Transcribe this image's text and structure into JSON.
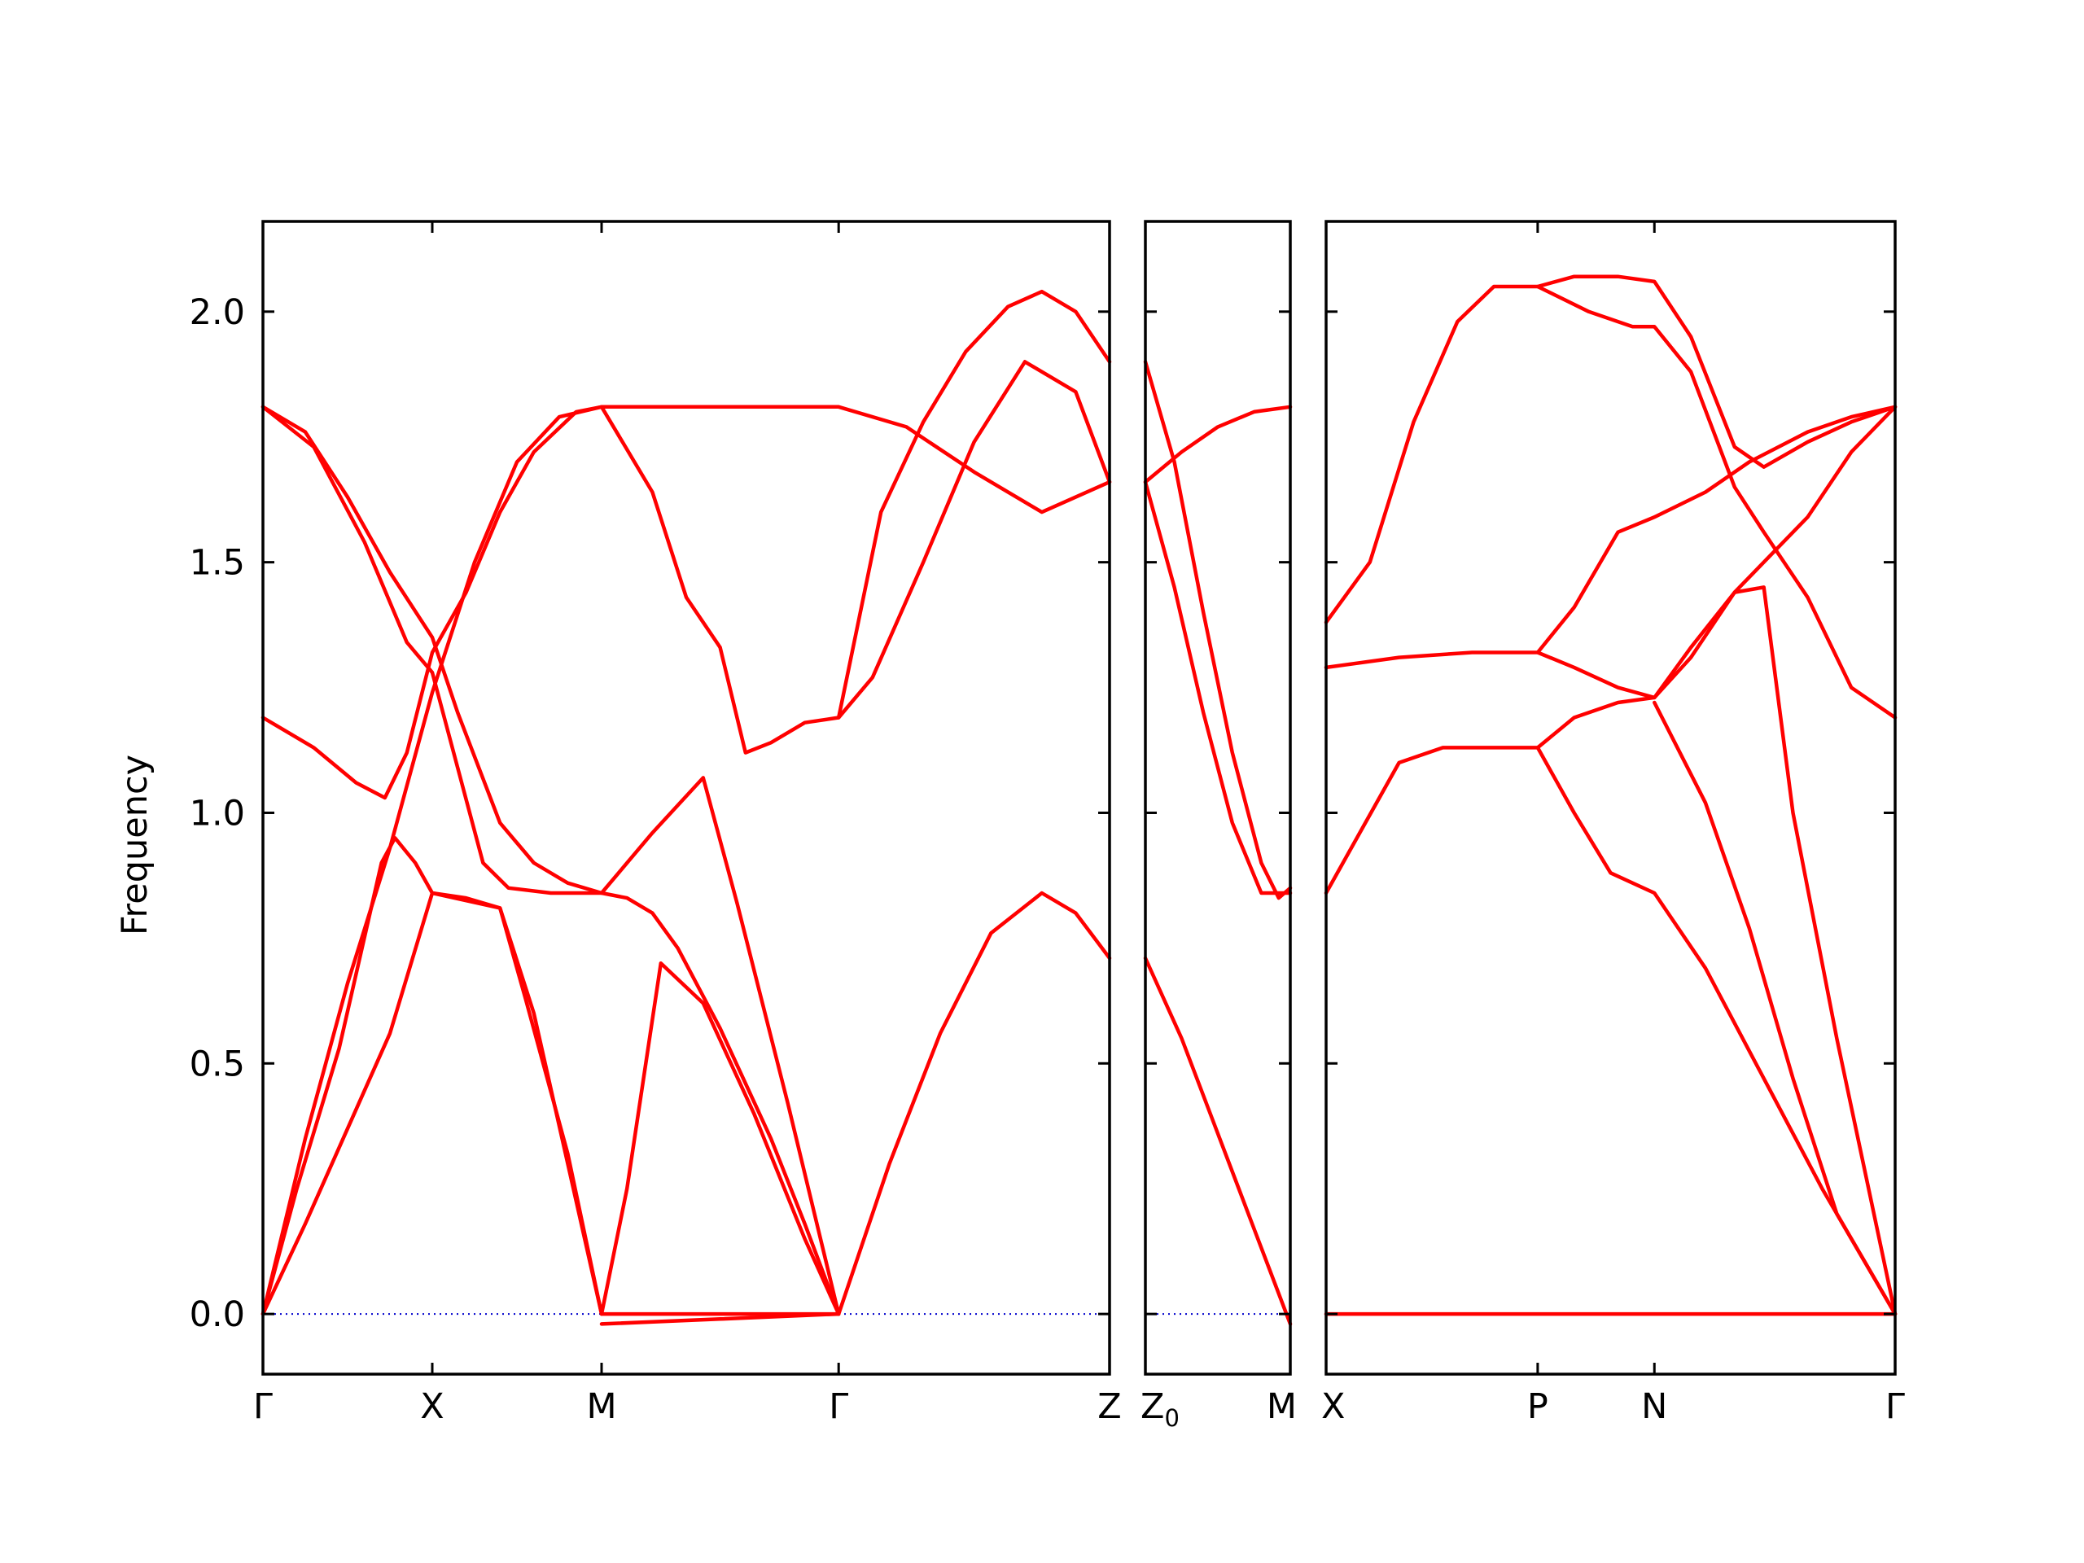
{
  "chart_data": {
    "type": "line",
    "title": "",
    "ylabel": "Frequency",
    "ylim": [
      -0.12,
      2.18
    ],
    "y_ticks": [
      0.0,
      0.5,
      1.0,
      1.5,
      2.0
    ],
    "y_tick_labels": [
      "0.0",
      "0.5",
      "1.0",
      "1.5",
      "2.0"
    ],
    "colors": {
      "band": "#ff0000",
      "zero_line": "#0000cc",
      "axes": "#000000"
    },
    "grid": false,
    "legend": "none",
    "panels": [
      {
        "xlim": [
          0,
          5
        ],
        "x_ticks": [
          0,
          1,
          2,
          3.4,
          5
        ],
        "x_tick_labels": [
          "Γ",
          "X",
          "M",
          "Γ",
          "Z"
        ],
        "series": [
          {
            "values": [
              [
                0,
                0
              ],
              [
                0.25,
                0.35
              ],
              [
                0.5,
                0.66
              ],
              [
                0.75,
                0.93
              ],
              [
                1,
                1.24
              ],
              [
                1.25,
                1.5
              ],
              [
                1.5,
                1.7
              ],
              [
                1.75,
                1.79
              ],
              [
                2,
                1.81
              ],
              [
                2.3,
                1.81
              ],
              [
                2.7,
                1.81
              ],
              [
                3,
                1.81
              ],
              [
                3.4,
                1.81
              ],
              [
                3.8,
                1.77
              ],
              [
                4.2,
                1.68
              ],
              [
                4.6,
                1.6
              ],
              [
                5,
                1.66
              ]
            ]
          },
          {
            "values": [
              [
                0,
                1.81
              ],
              [
                0.3,
                1.73
              ],
              [
                0.6,
                1.54
              ],
              [
                0.85,
                1.34
              ],
              [
                1,
                1.28
              ],
              [
                1.15,
                1.09
              ],
              [
                1.3,
                0.9
              ],
              [
                1.45,
                0.85
              ],
              [
                1.7,
                0.84
              ],
              [
                2,
                0.84
              ],
              [
                2.15,
                0.83
              ],
              [
                2.3,
                0.8
              ],
              [
                2.45,
                0.73
              ],
              [
                2.7,
                0.57
              ],
              [
                3,
                0.35
              ],
              [
                3.2,
                0.18
              ],
              [
                3.4,
                0
              ]
            ]
          },
          {
            "values": [
              [
                0,
                1.81
              ],
              [
                0.25,
                1.76
              ],
              [
                0.5,
                1.63
              ],
              [
                0.75,
                1.48
              ],
              [
                1,
                1.35
              ],
              [
                1.15,
                1.2
              ],
              [
                1.4,
                0.98
              ],
              [
                1.6,
                0.9
              ],
              [
                1.8,
                0.86
              ],
              [
                2,
                0.84
              ],
              [
                2.3,
                0.96
              ],
              [
                2.6,
                1.07
              ],
              [
                2.8,
                0.82
              ],
              [
                3.1,
                0.42
              ],
              [
                3.4,
                0
              ]
            ]
          },
          {
            "values": [
              [
                0,
                1.19
              ],
              [
                0.3,
                1.13
              ],
              [
                0.55,
                1.06
              ],
              [
                0.72,
                1.03
              ],
              [
                0.85,
                1.12
              ],
              [
                1,
                1.32
              ],
              [
                1.2,
                1.44
              ],
              [
                1.4,
                1.6
              ],
              [
                1.6,
                1.72
              ],
              [
                1.85,
                1.8
              ],
              [
                2,
                1.81
              ],
              [
                2.3,
                1.64
              ],
              [
                2.5,
                1.43
              ],
              [
                2.7,
                1.33
              ],
              [
                2.85,
                1.12
              ],
              [
                3,
                1.14
              ],
              [
                3.2,
                1.18
              ],
              [
                3.4,
                1.19
              ],
              [
                3.6,
                1.27
              ],
              [
                3.9,
                1.5
              ],
              [
                4.2,
                1.74
              ],
              [
                4.5,
                1.9
              ],
              [
                4.8,
                1.84
              ],
              [
                5,
                1.66
              ]
            ]
          },
          {
            "values": [
              [
                0,
                0
              ],
              [
                0.2,
                0.25
              ],
              [
                0.45,
                0.53
              ],
              [
                0.7,
                0.9
              ],
              [
                0.78,
                0.95
              ],
              [
                0.9,
                0.9
              ],
              [
                1,
                0.84
              ],
              [
                1.2,
                0.83
              ],
              [
                1.4,
                0.81
              ],
              [
                1.55,
                0.63
              ],
              [
                1.8,
                0.32
              ],
              [
                2,
                0
              ],
              [
                2.15,
                0.25
              ],
              [
                2.35,
                0.7
              ],
              [
                2.6,
                0.62
              ],
              [
                2.9,
                0.4
              ],
              [
                3.2,
                0.15
              ],
              [
                3.4,
                0
              ]
            ]
          },
          {
            "values": [
              [
                0,
                0
              ],
              [
                0.25,
                0.18
              ],
              [
                0.5,
                0.37
              ],
              [
                0.75,
                0.56
              ],
              [
                1,
                0.84
              ],
              [
                1.4,
                0.81
              ],
              [
                1.6,
                0.6
              ],
              [
                1.8,
                0.3
              ],
              [
                2,
                0
              ],
              [
                2.7,
                0
              ],
              [
                3.4,
                0
              ]
            ]
          },
          {
            "values": [
              [
                2,
                -0.02
              ],
              [
                2.7,
                -0.01
              ],
              [
                3.4,
                0
              ],
              [
                3.7,
                0.3
              ],
              [
                4,
                0.56
              ],
              [
                4.3,
                0.76
              ],
              [
                4.6,
                0.84
              ],
              [
                4.8,
                0.8
              ],
              [
                5,
                0.71
              ]
            ]
          },
          {
            "values": [
              [
                3.4,
                1.19
              ],
              [
                3.65,
                1.6
              ],
              [
                3.9,
                1.78
              ],
              [
                4.15,
                1.92
              ],
              [
                4.4,
                2.01
              ],
              [
                4.6,
                2.04
              ],
              [
                4.8,
                2.0
              ],
              [
                5,
                1.9
              ]
            ]
          }
        ]
      },
      {
        "xlim": [
          0,
          1
        ],
        "x_ticks": [
          0,
          1
        ],
        "x_tick_labels": [
          "Z",
          "M"
        ],
        "x_tick_sub": [
          "0",
          ""
        ],
        "series": [
          {
            "values": [
              [
                0,
                1.66
              ],
              [
                0.25,
                1.72
              ],
              [
                0.5,
                1.77
              ],
              [
                0.75,
                1.8
              ],
              [
                1,
                1.81
              ]
            ]
          },
          {
            "values": [
              [
                0,
                1.9
              ],
              [
                0.2,
                1.7
              ],
              [
                0.4,
                1.4
              ],
              [
                0.6,
                1.12
              ],
              [
                0.8,
                0.9
              ],
              [
                0.92,
                0.83
              ],
              [
                1,
                0.85
              ]
            ]
          },
          {
            "values": [
              [
                0,
                1.66
              ],
              [
                0.2,
                1.45
              ],
              [
                0.4,
                1.2
              ],
              [
                0.6,
                0.98
              ],
              [
                0.8,
                0.84
              ],
              [
                1,
                0.84
              ]
            ]
          },
          {
            "values": [
              [
                0,
                0.71
              ],
              [
                0.25,
                0.55
              ],
              [
                0.5,
                0.36
              ],
              [
                0.75,
                0.17
              ],
              [
                1,
                -0.02
              ]
            ]
          }
        ]
      },
      {
        "xlim": [
          0,
          3.9
        ],
        "x_ticks": [
          0,
          1.45,
          2.25,
          3.9
        ],
        "x_tick_labels": [
          "X",
          "P",
          "N",
          "Γ"
        ],
        "series": [
          {
            "values": [
              [
                0,
                1.38
              ],
              [
                0.3,
                1.5
              ],
              [
                0.6,
                1.78
              ],
              [
                0.9,
                1.98
              ],
              [
                1.15,
                2.05
              ],
              [
                1.45,
                2.05
              ],
              [
                1.8,
                2.0
              ],
              [
                2.1,
                1.97
              ],
              [
                2.25,
                1.97
              ],
              [
                2.5,
                1.88
              ],
              [
                2.8,
                1.65
              ],
              [
                3,
                1.56
              ],
              [
                3.3,
                1.43
              ],
              [
                3.6,
                1.25
              ],
              [
                3.9,
                1.19
              ]
            ]
          },
          {
            "values": [
              [
                0,
                1.29
              ],
              [
                0.5,
                1.31
              ],
              [
                1,
                1.32
              ],
              [
                1.45,
                1.32
              ],
              [
                1.7,
                1.29
              ],
              [
                2,
                1.25
              ],
              [
                2.25,
                1.23
              ],
              [
                2.5,
                1.31
              ],
              [
                2.8,
                1.44
              ],
              [
                3,
                1.5
              ],
              [
                3.3,
                1.59
              ],
              [
                3.6,
                1.72
              ],
              [
                3.9,
                1.81
              ]
            ]
          },
          {
            "values": [
              [
                1.45,
                2.05
              ],
              [
                1.7,
                2.07
              ],
              [
                2,
                2.07
              ],
              [
                2.25,
                2.06
              ],
              [
                2.5,
                1.95
              ],
              [
                2.8,
                1.73
              ],
              [
                3,
                1.69
              ],
              [
                3.3,
                1.74
              ],
              [
                3.6,
                1.78
              ],
              [
                3.9,
                1.81
              ]
            ]
          },
          {
            "values": [
              [
                0,
                0.84
              ],
              [
                0.25,
                0.97
              ],
              [
                0.5,
                1.1
              ],
              [
                0.8,
                1.13
              ],
              [
                1.15,
                1.13
              ],
              [
                1.45,
                1.13
              ],
              [
                1.7,
                1.19
              ],
              [
                2,
                1.22
              ],
              [
                2.25,
                1.23
              ],
              [
                2.5,
                1.33
              ],
              [
                2.8,
                1.44
              ],
              [
                3,
                1.45
              ],
              [
                3.2,
                1.0
              ],
              [
                3.5,
                0.55
              ],
              [
                3.9,
                0
              ]
            ]
          },
          {
            "values": [
              [
                1.45,
                1.32
              ],
              [
                1.7,
                1.41
              ],
              [
                2,
                1.56
              ],
              [
                2.25,
                1.59
              ],
              [
                2.6,
                1.64
              ],
              [
                2.9,
                1.7
              ],
              [
                3.3,
                1.76
              ],
              [
                3.6,
                1.79
              ],
              [
                3.9,
                1.81
              ]
            ]
          },
          {
            "values": [
              [
                1.45,
                1.13
              ],
              [
                1.7,
                1.0
              ],
              [
                1.95,
                0.88
              ],
              [
                2.25,
                0.84
              ],
              [
                2.6,
                0.69
              ],
              [
                3,
                0.47
              ],
              [
                3.4,
                0.25
              ],
              [
                3.9,
                0
              ]
            ]
          },
          {
            "values": [
              [
                2.25,
                1.22
              ],
              [
                2.6,
                1.02
              ],
              [
                2.9,
                0.77
              ],
              [
                3.2,
                0.47
              ],
              [
                3.5,
                0.2
              ],
              [
                3.9,
                0
              ]
            ]
          },
          {
            "values": [
              [
                0,
                0
              ],
              [
                3.9,
                0
              ]
            ]
          }
        ]
      }
    ]
  }
}
